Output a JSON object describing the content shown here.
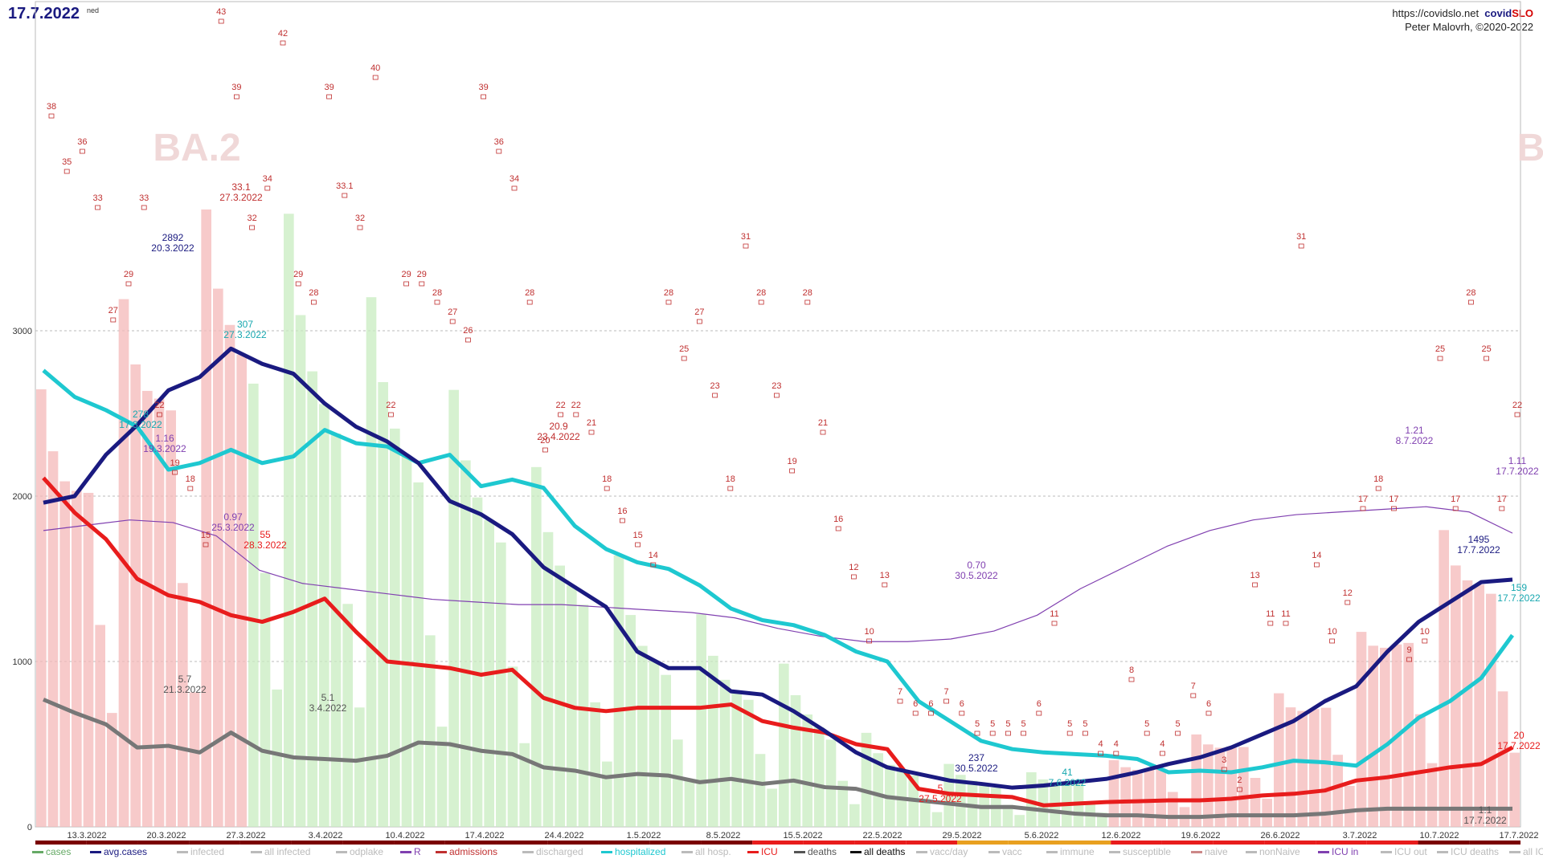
{
  "header": {
    "date": "17.7.2022",
    "weekday": "ned",
    "site_url": "https://covidslo.net",
    "brand_part1": "covid",
    "brand_part2": "SLO",
    "author": "Peter Malovrh, ©2020-2022"
  },
  "colors": {
    "avg_cases": "#1a1a80",
    "hospitalized": "#1ec8d0",
    "icu": "#e81c1c",
    "deaths": "#777777",
    "r": "#8040b0",
    "admissions": "#c03030",
    "cases_bar_red": "#f4b8b8",
    "cases_bar_green": "#c8ecc0",
    "cases_bar_gray": "#e6e6e6"
  },
  "chart_data": {
    "type": "line",
    "title": "",
    "xlabel": "",
    "ylabel": "",
    "ylim": [
      0,
      3000
    ],
    "yticks": [
      0,
      1000,
      2000,
      3000
    ],
    "grid": true,
    "variants": [
      "BA.2",
      "B"
    ],
    "xticks": [
      "13.3.2022",
      "20.3.2022",
      "27.3.2022",
      "3.4.2022",
      "10.4.2022",
      "17.4.2022",
      "24.4.2022",
      "1.5.2022",
      "8.5.2022",
      "15.5.2022",
      "22.5.2022",
      "29.5.2022",
      "5.6.2022",
      "12.6.2022",
      "19.6.2022",
      "26.6.2022",
      "3.7.2022",
      "10.7.2022",
      "17.7.2022"
    ],
    "series": [
      {
        "name": "avg.cases",
        "values": [
          1960,
          2000,
          2250,
          2430,
          2640,
          2720,
          2892,
          2800,
          2740,
          2560,
          2420,
          2330,
          2200,
          1970,
          1890,
          1770,
          1570,
          1450,
          1330,
          1060,
          960,
          960,
          820,
          800,
          700,
          580,
          450,
          360,
          320,
          280,
          260,
          237,
          250,
          270,
          290,
          330,
          380,
          420,
          480,
          560,
          640,
          760,
          850,
          1060,
          1240,
          1360,
          1480,
          1495
        ]
      },
      {
        "name": "hospitalized",
        "values": [
          2760,
          2600,
          2520,
          2420,
          2160,
          2200,
          2280,
          2200,
          2240,
          2400,
          2320,
          2300,
          2200,
          2250,
          2060,
          2100,
          2050,
          1820,
          1680,
          1600,
          1560,
          1460,
          1320,
          1250,
          1220,
          1160,
          1060,
          1000,
          760,
          640,
          520,
          470,
          450,
          440,
          430,
          410,
          330,
          340,
          330,
          360,
          400,
          390,
          370,
          500,
          660,
          760,
          900,
          1159
        ]
      },
      {
        "name": "ICU",
        "values": [
          2110,
          1900,
          1740,
          1500,
          1400,
          1360,
          1280,
          1240,
          1300,
          1380,
          1180,
          1000,
          980,
          960,
          920,
          950,
          780,
          720,
          700,
          720,
          720,
          720,
          740,
          640,
          600,
          570,
          500,
          470,
          230,
          200,
          190,
          180,
          130,
          140,
          150,
          155,
          160,
          160,
          170,
          190,
          200,
          220,
          280,
          300,
          330,
          360,
          380,
          480
        ]
      },
      {
        "name": "deaths",
        "values": [
          7.7,
          6.9,
          6.2,
          4.8,
          4.9,
          4.5,
          5.7,
          4.6,
          4.2,
          4.1,
          4.0,
          4.3,
          5.1,
          5.0,
          4.6,
          4.4,
          3.6,
          3.4,
          3.0,
          3.2,
          3.1,
          2.7,
          2.9,
          2.6,
          2.8,
          2.4,
          2.3,
          1.8,
          1.6,
          1.4,
          1.2,
          1.2,
          1.0,
          0.8,
          0.7,
          0.7,
          0.6,
          0.6,
          0.7,
          0.7,
          0.7,
          0.8,
          1.0,
          1.1,
          1.1,
          1.1,
          1.1,
          1.1
        ]
      },
      {
        "name": "R",
        "values": [
          1.12,
          1.14,
          1.16,
          1.15,
          1.1,
          0.97,
          0.92,
          0.9,
          0.88,
          0.86,
          0.85,
          0.84,
          0.84,
          0.83,
          0.82,
          0.81,
          0.79,
          0.75,
          0.72,
          0.7,
          0.7,
          0.71,
          0.74,
          0.8,
          0.9,
          0.98,
          1.06,
          1.12,
          1.16,
          1.18,
          1.19,
          1.2,
          1.21,
          1.19,
          1.11
        ]
      }
    ],
    "annotations": [
      {
        "series": "avg.cases",
        "date": "20.3.2022",
        "value": "2892"
      },
      {
        "series": "avg.cases",
        "date": "30.5.2022",
        "value": "237"
      },
      {
        "series": "avg.cases",
        "date": "17.7.2022",
        "value": "1495"
      },
      {
        "series": "hospitalized",
        "date": "17.3.2022",
        "value": "278"
      },
      {
        "series": "hospitalized",
        "date": "27.3.2022",
        "value": "307"
      },
      {
        "series": "hospitalized",
        "date": "7.6.2022",
        "value": "41"
      },
      {
        "series": "hospitalized",
        "date": "17.7.2022",
        "value": "159"
      },
      {
        "series": "ICU",
        "date": "28.3.2022",
        "value": "55"
      },
      {
        "series": "ICU",
        "date": "27.5.2022",
        "value": "5"
      },
      {
        "series": "ICU",
        "date": "17.7.2022",
        "value": "20"
      },
      {
        "series": "deaths",
        "date": "21.3.2022",
        "value": "5.7"
      },
      {
        "series": "deaths",
        "date": "3.4.2022",
        "value": "5.1"
      },
      {
        "series": "deaths",
        "date": "17.7.2022",
        "value": "1.1"
      },
      {
        "series": "R",
        "date": "19.3.2022",
        "value": "1.16"
      },
      {
        "series": "R",
        "date": "25.3.2022",
        "value": "0.97"
      },
      {
        "series": "R",
        "date": "30.5.2022",
        "value": "0.70"
      },
      {
        "series": "R",
        "date": "8.7.2022",
        "value": "1.21"
      },
      {
        "series": "R",
        "date": "17.7.2022",
        "value": "1.11"
      },
      {
        "series": "admissions",
        "date": "27.3.2022",
        "value": "33.1"
      },
      {
        "series": "admissions",
        "date": "23.4.2022",
        "value": "20.9"
      }
    ],
    "admissions_labels": [
      "38",
      "35",
      "36",
      "33",
      "27",
      "29",
      "33",
      "22",
      "19",
      "18",
      "15",
      "43",
      "39",
      "32",
      "34",
      "42",
      "29",
      "28",
      "39",
      "33.1",
      "32",
      "40",
      "22",
      "29",
      "29",
      "28",
      "27",
      "26",
      "39",
      "36",
      "34",
      "28",
      "20",
      "22",
      "22",
      "21",
      "18",
      "16",
      "15",
      "14",
      "28",
      "25",
      "27",
      "23",
      "18",
      "31",
      "28",
      "23",
      "19",
      "28",
      "21",
      "16",
      "12",
      "10",
      "13",
      "7",
      "6",
      "6",
      "7",
      "6",
      "5",
      "5",
      "5",
      "5",
      "6",
      "11",
      "5",
      "5",
      "4",
      "4",
      "8",
      "5",
      "4",
      "5",
      "7",
      "6",
      "3",
      "2",
      "13",
      "11",
      "11",
      "31",
      "14",
      "10",
      "12",
      "17",
      "18",
      "17",
      "9",
      "10",
      "25",
      "17",
      "28",
      "25",
      "17",
      "22"
    ],
    "legend": [
      "cases",
      "avg.cases",
      "infected",
      "all infected",
      "odplake",
      "R",
      "admissions",
      "discharged",
      "hospitalized",
      "all hosp.",
      "ICU",
      "deaths",
      "all deaths",
      "vacc/day",
      "vacc",
      "immune",
      "susceptible",
      "naive",
      "nonNaive",
      "ICU in",
      "ICU out",
      "ICU deaths",
      "all ICU"
    ],
    "legend_colors": [
      "#6a6",
      "#1a1a80",
      "#bbb",
      "#bbb",
      "#bbb",
      "#8040b0",
      "#c03030",
      "#bbb",
      "#1ec8d0",
      "#bbb",
      "#e81c1c",
      "#555",
      "#111",
      "#bbb",
      "#bbb",
      "#bbb",
      "#bbb",
      "#c88",
      "#bbb",
      "#8040b0",
      "#bbb",
      "#bbb",
      "#bbb"
    ],
    "legend_active": [
      true,
      true,
      false,
      false,
      false,
      true,
      true,
      false,
      true,
      false,
      true,
      true,
      true,
      false,
      false,
      false,
      false,
      false,
      false,
      true,
      false,
      false,
      false
    ]
  }
}
